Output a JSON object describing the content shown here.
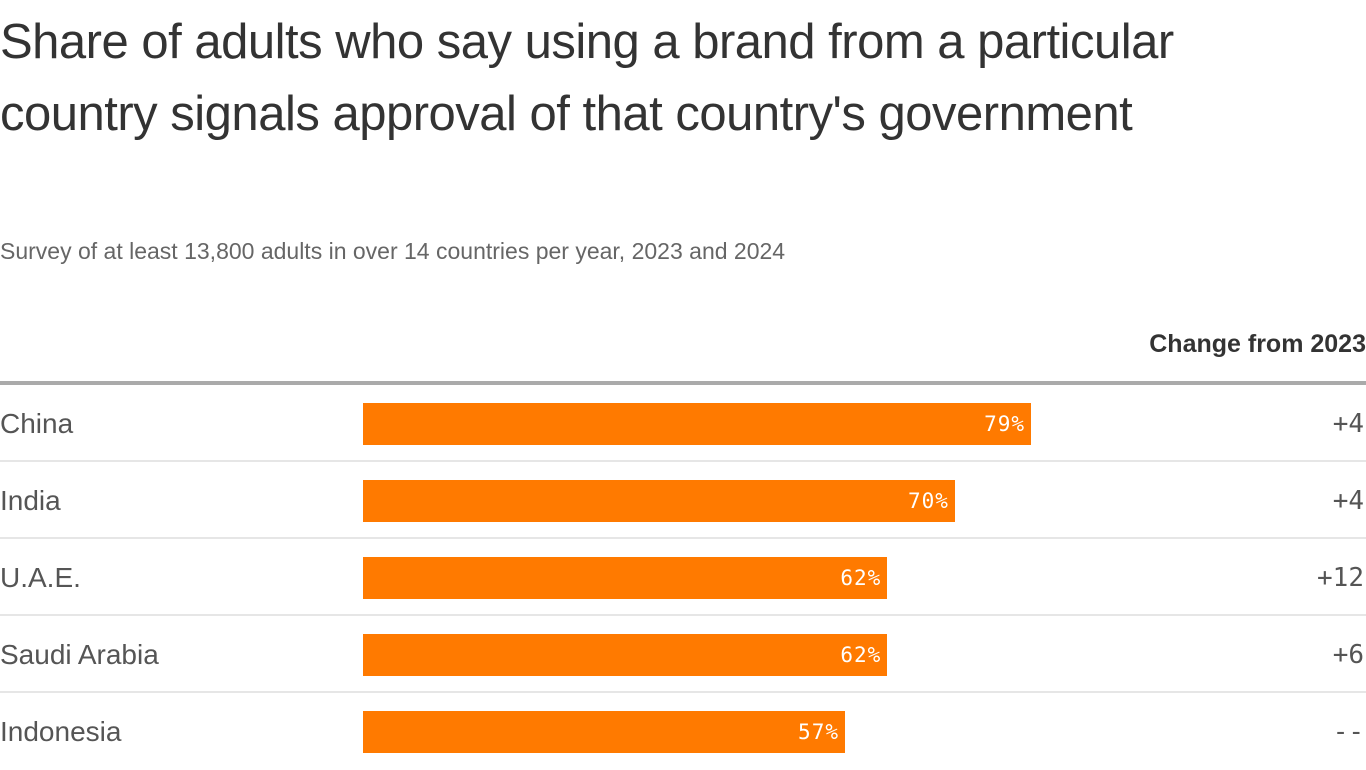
{
  "chart_data": {
    "type": "bar",
    "orientation": "horizontal",
    "title": "Share of adults who say using a brand from a particular country signals approval of that country's government",
    "subtitle": "Survey of at least 13,800 adults in over 14 countries per year, 2023 and 2024",
    "change_header": "Change from 2023",
    "categories": [
      "China",
      "India",
      "U.A.E.",
      "Saudi Arabia",
      "Indonesia"
    ],
    "values": [
      79,
      70,
      62,
      62,
      57
    ],
    "value_labels": [
      "79%",
      "70%",
      "62%",
      "62%",
      "57%"
    ],
    "changes": [
      "+4",
      "+4",
      "+12",
      "+6",
      "--"
    ],
    "xlim": [
      0,
      100
    ],
    "bar_color": "#ff7a00",
    "grid": false
  }
}
